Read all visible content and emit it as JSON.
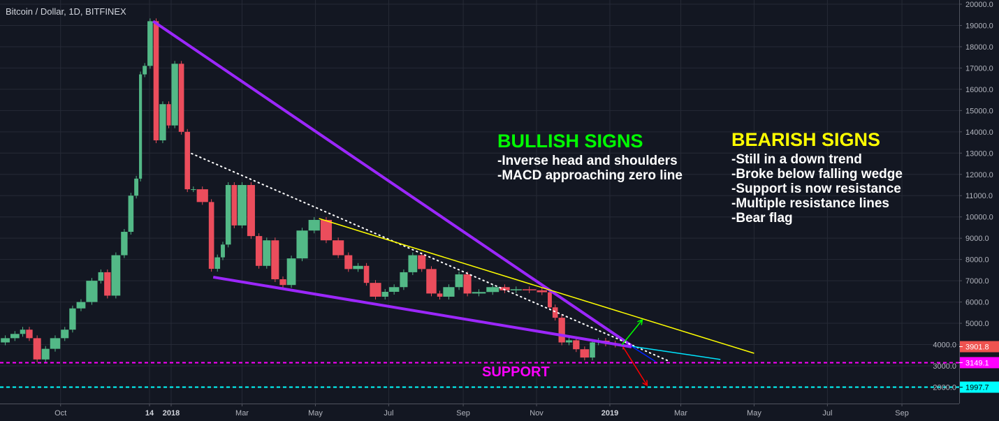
{
  "header": {
    "title": "Bitcoin / Dollar, 1D, BITFINEX"
  },
  "annotations": {
    "bullish": {
      "heading": "BULLISH SIGNS",
      "lines": [
        "-Inverse head and shoulders",
        "-MACD approaching zero line"
      ]
    },
    "bearish": {
      "heading": "BEARISH SIGNS",
      "lines": [
        "-Still in a down trend",
        "-Broke below falling wedge",
        "-Support is now resistance",
        "-Multiple resistance lines",
        "-Bear flag"
      ]
    },
    "support_label": "SUPPORT"
  },
  "chart_data": {
    "type": "candlestick",
    "title": "Bitcoin / Dollar, 1D, BITFINEX",
    "ylim": [
      1228,
      20000
    ],
    "xlim": [
      "2017-08-12",
      "2019-10-07"
    ],
    "grid": true,
    "y_ticks": [
      20000,
      19000,
      18000,
      17000,
      16000,
      15000,
      14000,
      13000,
      12000,
      11000,
      10000,
      9000,
      8000,
      7000,
      6000,
      5000,
      4000,
      3000,
      2000
    ],
    "y_tick_labels": [
      "20000.0",
      "19000.0",
      "18000.0",
      "17000.0",
      "16000.0",
      "15000.0",
      "14000.0",
      "13000.0",
      "12000.0",
      "11000.0",
      "10000.0",
      "9000.0",
      "8000.0",
      "7000.0",
      "6000.0",
      "5000.0",
      "4000.0",
      "3000.0",
      "2000.0"
    ],
    "x_ticks": [
      {
        "date": "2017-10-01",
        "label": "Oct",
        "bold": false
      },
      {
        "date": "2017-12-14",
        "label": "14",
        "bold": true
      },
      {
        "date": "2018-01-01",
        "label": "2018",
        "bold": true
      },
      {
        "date": "2018-03-01",
        "label": "Mar",
        "bold": false
      },
      {
        "date": "2018-05-01",
        "label": "May",
        "bold": false
      },
      {
        "date": "2018-07-01",
        "label": "Jul",
        "bold": false
      },
      {
        "date": "2018-09-01",
        "label": "Sep",
        "bold": false
      },
      {
        "date": "2018-11-01",
        "label": "Nov",
        "bold": false
      },
      {
        "date": "2019-01-01",
        "label": "2019",
        "bold": true
      },
      {
        "date": "2019-03-01",
        "label": "Mar",
        "bold": false
      },
      {
        "date": "2019-05-01",
        "label": "May",
        "bold": false
      },
      {
        "date": "2019-07-01",
        "label": "Jul",
        "bold": false
      },
      {
        "date": "2019-09-01",
        "label": "Sep",
        "bold": false
      }
    ],
    "closes": [
      [
        "2017-08-12",
        4100
      ],
      [
        "2017-08-20",
        4300
      ],
      [
        "2017-08-28",
        4500
      ],
      [
        "2017-09-02",
        4700
      ],
      [
        "2017-09-08",
        4300
      ],
      [
        "2017-09-15",
        3300
      ],
      [
        "2017-09-22",
        3800
      ],
      [
        "2017-10-01",
        4300
      ],
      [
        "2017-10-08",
        4700
      ],
      [
        "2017-10-14",
        5700
      ],
      [
        "2017-10-22",
        6000
      ],
      [
        "2017-11-01",
        7000
      ],
      [
        "2017-11-06",
        7400
      ],
      [
        "2017-11-12",
        6300
      ],
      [
        "2017-11-20",
        8200
      ],
      [
        "2017-11-26",
        9300
      ],
      [
        "2017-12-01",
        11000
      ],
      [
        "2017-12-05",
        11800
      ],
      [
        "2017-12-08",
        16700
      ],
      [
        "2017-12-12",
        17100
      ],
      [
        "2017-12-17",
        19200
      ],
      [
        "2017-12-22",
        13600
      ],
      [
        "2017-12-28",
        15300
      ],
      [
        "2018-01-01",
        14300
      ],
      [
        "2018-01-07",
        17200
      ],
      [
        "2018-01-12",
        14000
      ],
      [
        "2018-01-17",
        11300
      ],
      [
        "2018-01-22",
        11300
      ],
      [
        "2018-02-01",
        10700
      ],
      [
        "2018-02-06",
        7560
      ],
      [
        "2018-02-11",
        8100
      ],
      [
        "2018-02-15",
        8700
      ],
      [
        "2018-02-20",
        11500
      ],
      [
        "2018-02-25",
        9600
      ],
      [
        "2018-03-05",
        11500
      ],
      [
        "2018-03-12",
        9100
      ],
      [
        "2018-03-18",
        7700
      ],
      [
        "2018-03-25",
        8900
      ],
      [
        "2018-04-01",
        7070
      ],
      [
        "2018-04-07",
        6800
      ],
      [
        "2018-04-15",
        8050
      ],
      [
        "2018-04-25",
        9360
      ],
      [
        "2018-05-05",
        9860
      ],
      [
        "2018-05-15",
        8900
      ],
      [
        "2018-05-25",
        8200
      ],
      [
        "2018-06-01",
        7550
      ],
      [
        "2018-06-10",
        7700
      ],
      [
        "2018-06-15",
        6900
      ],
      [
        "2018-06-25",
        6250
      ],
      [
        "2018-07-01",
        6480
      ],
      [
        "2018-07-10",
        6700
      ],
      [
        "2018-07-17",
        7400
      ],
      [
        "2018-07-25",
        8200
      ],
      [
        "2018-08-01",
        7550
      ],
      [
        "2018-08-10",
        6400
      ],
      [
        "2018-08-15",
        6250
      ],
      [
        "2018-08-25",
        6700
      ],
      [
        "2018-09-01",
        7300
      ],
      [
        "2018-09-08",
        6400
      ],
      [
        "2018-09-20",
        6470
      ],
      [
        "2018-10-01",
        6700
      ],
      [
        "2018-10-10",
        6550
      ],
      [
        "2018-10-20",
        6600
      ],
      [
        "2018-11-01",
        6550
      ],
      [
        "2018-11-10",
        6460
      ],
      [
        "2018-11-14",
        5750
      ],
      [
        "2018-11-19",
        5260
      ],
      [
        "2018-11-25",
        4100
      ],
      [
        "2018-12-01",
        4200
      ],
      [
        "2018-12-07",
        3780
      ],
      [
        "2018-12-15",
        3390
      ],
      [
        "2018-12-20",
        4100
      ],
      [
        "2018-12-25",
        4180
      ],
      [
        "2019-01-01",
        4050
      ],
      [
        "2019-01-10",
        4000
      ],
      [
        "2019-01-14",
        3901.8
      ]
    ],
    "lines": [
      {
        "name": "falling-wedge-upper",
        "color": "#9c27ff",
        "style": "solid",
        "from": [
          "2017-12-17",
          19200
        ],
        "to": [
          "2019-01-19",
          3950
        ]
      },
      {
        "name": "falling-wedge-lower",
        "color": "#9c27ff",
        "style": "solid",
        "from": [
          "2018-02-05",
          7170
        ],
        "to": [
          "2019-01-19",
          3890
        ]
      },
      {
        "name": "dotted-resistance",
        "color": "#ffffff",
        "style": "dotted",
        "from": [
          "2018-01-18",
          12980
        ],
        "to": [
          "2019-02-20",
          3200
        ]
      },
      {
        "name": "yellow-resistance",
        "color": "#ffff00",
        "style": "solid",
        "from": [
          "2018-05-04",
          9925
        ],
        "to": [
          "2019-05-01",
          3590
        ]
      },
      {
        "name": "cyan-line",
        "color": "#00e5ff",
        "style": "solid",
        "from": [
          "2019-01-19",
          3920
        ],
        "to": [
          "2019-04-03",
          3300
        ]
      },
      {
        "name": "blue-line",
        "color": "#0022ff",
        "style": "solid",
        "from": [
          "2019-01-19",
          3920
        ],
        "to": [
          "2019-02-08",
          3200
        ]
      }
    ],
    "arrows": [
      {
        "name": "bullish-arrow",
        "color": "#00ff00",
        "from": [
          "2019-01-11",
          3985
        ],
        "to": [
          "2019-01-28",
          5165
        ]
      },
      {
        "name": "bearish-arrow",
        "color": "#ff0000",
        "from": [
          "2019-01-12",
          3890
        ],
        "to": [
          "2019-02-01",
          2080
        ]
      }
    ],
    "horizontal_levels": [
      {
        "name": "support-level",
        "price": 3149.1,
        "label": "3149.1",
        "color": "#ff00ff",
        "text_color": "#ffffff"
      },
      {
        "name": "lower-support-level",
        "price": 1997.7,
        "label": "1997.7",
        "color": "#00ffff",
        "text_color": "#000000"
      }
    ],
    "last_price": {
      "price": 3901.8,
      "label": "3901.8",
      "color": "#ef5350"
    },
    "colors": {
      "up": "#53b987",
      "down": "#eb4d5c",
      "background": "#131722",
      "grid": "#262a36"
    }
  }
}
